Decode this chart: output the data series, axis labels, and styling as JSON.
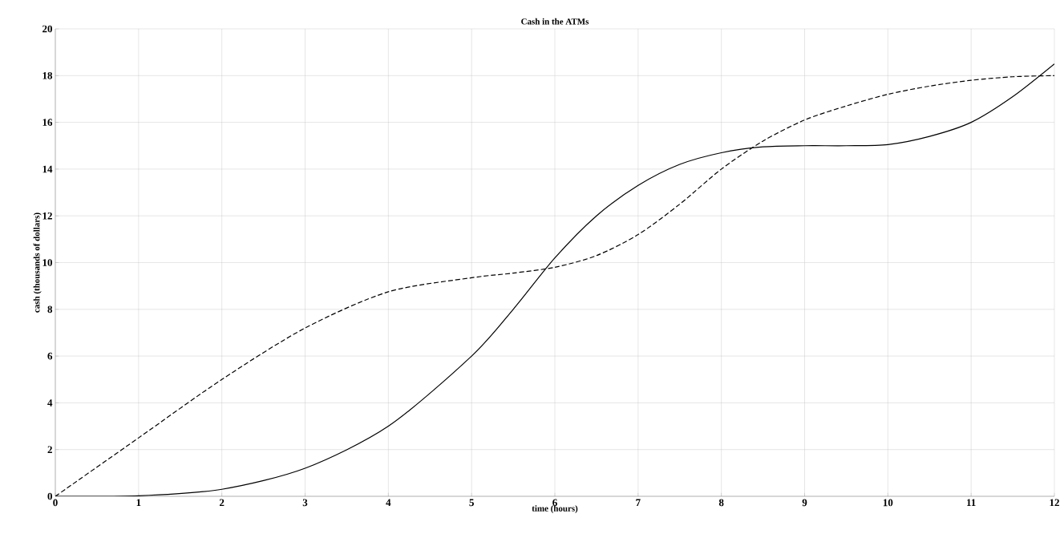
{
  "chart_data": {
    "type": "line",
    "title": "Cash  in the ATMs",
    "xlabel": "time (hours)",
    "ylabel": "cash (thousands of dollars)",
    "x": [
      0,
      1,
      2,
      3,
      4,
      5,
      5.5,
      6,
      6.5,
      7,
      7.5,
      8,
      8.5,
      9,
      9.5,
      10,
      10.5,
      11,
      11.5,
      12
    ],
    "series": [
      {
        "color": "#000000",
        "line_style": "solid",
        "values": [
          0,
          0.02,
          0.3,
          1.2,
          3,
          6,
          8,
          10.2,
          12,
          13.3,
          14.2,
          14.7,
          14.95,
          15,
          15,
          15.05,
          15.4,
          16,
          17.1,
          18.5
        ]
      },
      {
        "color": "#000000",
        "line_style": "dashed",
        "values": [
          0,
          2.5,
          5,
          7.2,
          8.75,
          9.35,
          9.55,
          9.8,
          10.3,
          11.2,
          12.5,
          14,
          15.2,
          16.1,
          16.7,
          17.2,
          17.55,
          17.8,
          17.95,
          18
        ]
      }
    ],
    "xlim": [
      0,
      12
    ],
    "ylim": [
      0,
      20
    ],
    "xticks": [
      0,
      1,
      2,
      3,
      4,
      5,
      6,
      7,
      8,
      9,
      10,
      11,
      12
    ],
    "yticks": [
      0,
      2,
      4,
      6,
      8,
      10,
      12,
      14,
      16,
      18,
      20
    ],
    "grid": true,
    "marker": "none"
  }
}
